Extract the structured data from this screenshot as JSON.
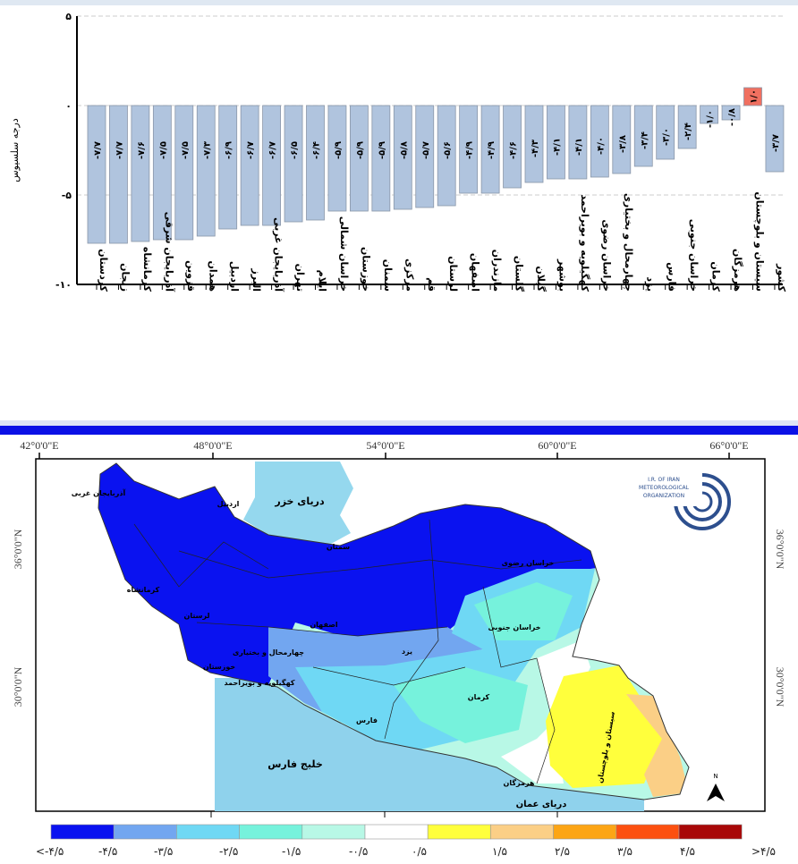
{
  "chart_data": {
    "type": "bar",
    "ylabel": "درجه سلسیوس",
    "ylim": [
      -10,
      5
    ],
    "yticks": [
      5,
      0,
      -5,
      -10
    ],
    "ytick_labels": [
      "۵",
      "٠",
      "-۵",
      "-۱۰"
    ],
    "grid": "dashed horizontal at 5, 0, -5",
    "categories": [
      "کردستان",
      "زنجان",
      "کرمانشاه",
      "آذربایجان شرقی",
      "قزوین",
      "همدان",
      "اردبیل",
      "البرز",
      "آذربایجان غربی",
      "تهران",
      "ایلام",
      "خراسان شمالی",
      "خوزستان",
      "سمنان",
      "مرکزی",
      "قم",
      "لرستان",
      "اصفهان",
      "مازندران",
      "گلستان",
      "گیلان",
      "بوشهر",
      "کهگیلویه و بویراحمد",
      "خراسان رضوی",
      "چهارمحال و بختیاری",
      "یزد",
      "فارس",
      "خراسان جنوبی",
      "کرمان",
      "هرمزگان",
      "سیستان و بلوچستان",
      "کشور"
    ],
    "values": [
      -7.7,
      -7.7,
      -7.6,
      -7.5,
      -7.5,
      -7.3,
      -6.9,
      -6.7,
      -6.7,
      -6.5,
      -6.4,
      -5.9,
      -5.9,
      -5.9,
      -5.8,
      -5.7,
      -5.6,
      -4.9,
      -4.9,
      -4.6,
      -4.3,
      -4.1,
      -4.1,
      -4.0,
      -3.8,
      -3.4,
      -3.0,
      -2.4,
      -1.0,
      -0.8,
      1.0,
      -3.7
    ],
    "value_labels": [
      "-۷/۷",
      "-۷/۷",
      "-۷/۶",
      "-۷/۵",
      "-۷/۵",
      "-۷/۳",
      "-۶/۹",
      "-۶/۷",
      "-۶/۷",
      "-۶/۵",
      "-۶/۴",
      "-۵/۹",
      "-۵/۹",
      "-۵/۹",
      "-۵/۸",
      "-۵/۷",
      "-۵/۶",
      "-۴/۹",
      "-۴/۹",
      "-۴/۶",
      "-۴/۳",
      "-۴/۱",
      "-۴/۱",
      "-۴/۰",
      "-۳/۸",
      "-۳/۴",
      "-۳/۰",
      "-۲/۴",
      "-۱/۰",
      "-۰/۸",
      "۱/۰",
      "-۳/۷"
    ],
    "colors": {
      "negative": "#b0c4de",
      "positive": "#f07060",
      "bar_stroke": "#8a96a8"
    }
  },
  "map": {
    "lon_labels": [
      "42°0'0\"E",
      "48°0'0\"E",
      "54°0'0\"E",
      "60°0'0\"E",
      "66°0'0\"E"
    ],
    "lat_labels": [
      "36°0'0\"N",
      "30°0'0\"N"
    ],
    "water_labels": {
      "caspian": "دریای خزر",
      "gulf": "خلیج فارس",
      "oman": "دریای عمان"
    },
    "province_labels": [
      "آذربایجان غربی",
      "اردبیل",
      "سمنان",
      "خراسان رضوی",
      "خراسان جنوبی",
      "اصفهان",
      "یزد",
      "چهارمحال و بختیاری",
      "کهگیلویه و بویراحمد",
      "فارس",
      "کرمان",
      "هرمزگان",
      "سیستان و بلوچستان",
      "کرمانشاه",
      "لرستان",
      "خوزستان"
    ],
    "north_label": "N",
    "legend": {
      "colors": [
        "#0a12f0",
        "#72a6f0",
        "#6fd8f4",
        "#76f2dc",
        "#b8f8e6",
        "#ffffff",
        "#ffff3c",
        "#fbcf86",
        "#fca515",
        "#fc5010",
        "#a80808"
      ],
      "labels": [
        "<-۴/۵",
        "-۴/۵",
        "-۳/۵",
        "-۲/۵",
        "-۱/۵",
        "-۰/۵",
        "۰/۵",
        "۱/۵",
        "۲/۵",
        "۳/۵",
        "۴/۵",
        ">۴/۵"
      ]
    },
    "logo_text": "I.R. OF IRAN METEOROLOGICAL ORGANIZATION"
  }
}
